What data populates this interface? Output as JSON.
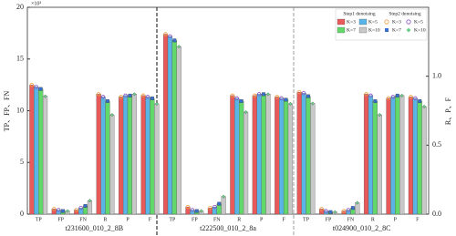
{
  "chart_data": {
    "type": "bar",
    "ylabel": "TP、FP、FN",
    "y2label": "R、P、F",
    "yexponent": "×10³",
    "groups": [
      "t231600_010_2_8B",
      "t222500_010_2_8a",
      "t024900_010_2_8C"
    ],
    "categories": [
      "TP",
      "FP",
      "FN",
      "R",
      "P",
      "F",
      "TP",
      "FP",
      "FN",
      "R",
      "P",
      "F",
      "TP",
      "FP",
      "FN",
      "R",
      "P",
      "F"
    ],
    "category_axis": [
      "y",
      "y",
      "y",
      "y2",
      "y2",
      "y2",
      "y",
      "y",
      "y",
      "y2",
      "y2",
      "y2",
      "y",
      "y",
      "y",
      "y2",
      "y2",
      "y2"
    ],
    "ylim": [
      0,
      20
    ],
    "yticks": [
      0,
      5,
      10,
      15,
      20
    ],
    "y2lim": [
      0,
      1.5
    ],
    "y2ticks": [
      {
        "value": 0,
        "label": "0.0"
      },
      {
        "value": 0.5,
        "label": "0.5"
      },
      {
        "value": 1,
        "label": "1.0"
      }
    ],
    "legend_titles": [
      "Step1 denoising",
      "Step2 denoising"
    ],
    "series": [
      {
        "name": "K=3",
        "step": 1,
        "color": "#e8595a",
        "values": [
          12.5,
          0.5,
          0.4,
          0.87,
          0.85,
          0.86,
          17.4,
          0.7,
          0.6,
          0.86,
          0.86,
          0.85,
          11.8,
          0.5,
          0.3,
          0.87,
          0.84,
          0.85
        ]
      },
      {
        "name": "K=5",
        "step": 1,
        "color": "#5ab4e6",
        "values": [
          12.3,
          0.4,
          0.6,
          0.85,
          0.86,
          0.85,
          17.2,
          0.4,
          0.7,
          0.84,
          0.87,
          0.84,
          11.7,
          0.3,
          0.4,
          0.86,
          0.85,
          0.84
        ]
      },
      {
        "name": "K=7",
        "step": 1,
        "color": "#62d86a",
        "values": [
          12.1,
          0.3,
          0.8,
          0.82,
          0.86,
          0.84,
          16.8,
          0.3,
          1.0,
          0.82,
          0.87,
          0.83,
          11.4,
          0.2,
          0.6,
          0.82,
          0.86,
          0.82
        ]
      },
      {
        "name": "K=10",
        "step": 1,
        "color": "#c8c8c8",
        "values": [
          11.4,
          0.3,
          1.3,
          0.72,
          0.87,
          0.8,
          16.2,
          0.3,
          1.7,
          0.74,
          0.87,
          0.8,
          10.7,
          0.2,
          1.1,
          0.72,
          0.86,
          0.78
        ]
      },
      {
        "name": "K=3",
        "step": 2,
        "marker": "circle",
        "color": "#f0a040",
        "values": [
          12.5,
          0.5,
          0.4,
          0.87,
          0.85,
          0.86,
          17.4,
          0.7,
          0.6,
          0.86,
          0.86,
          0.85,
          11.8,
          0.5,
          0.3,
          0.87,
          0.84,
          0.85
        ]
      },
      {
        "name": "K=5",
        "step": 2,
        "marker": "circle",
        "color": "#8a4fc8",
        "values": [
          12.3,
          0.4,
          0.6,
          0.85,
          0.86,
          0.85,
          17.2,
          0.4,
          0.7,
          0.84,
          0.87,
          0.84,
          11.7,
          0.3,
          0.4,
          0.86,
          0.85,
          0.84
        ]
      },
      {
        "name": "K=7",
        "step": 2,
        "marker": "square",
        "color": "#3a6fd0",
        "values": [
          12.1,
          0.3,
          0.8,
          0.82,
          0.86,
          0.84,
          16.8,
          0.3,
          1.0,
          0.82,
          0.87,
          0.83,
          11.4,
          0.2,
          0.6,
          0.82,
          0.86,
          0.82
        ]
      },
      {
        "name": "K=10",
        "step": 2,
        "marker": "diamond",
        "color": "#6ad08a",
        "values": [
          11.4,
          0.3,
          1.3,
          0.72,
          0.87,
          0.8,
          16.2,
          0.3,
          1.7,
          0.74,
          0.87,
          0.8,
          10.7,
          0.2,
          1.1,
          0.72,
          0.86,
          0.78
        ]
      }
    ]
  }
}
